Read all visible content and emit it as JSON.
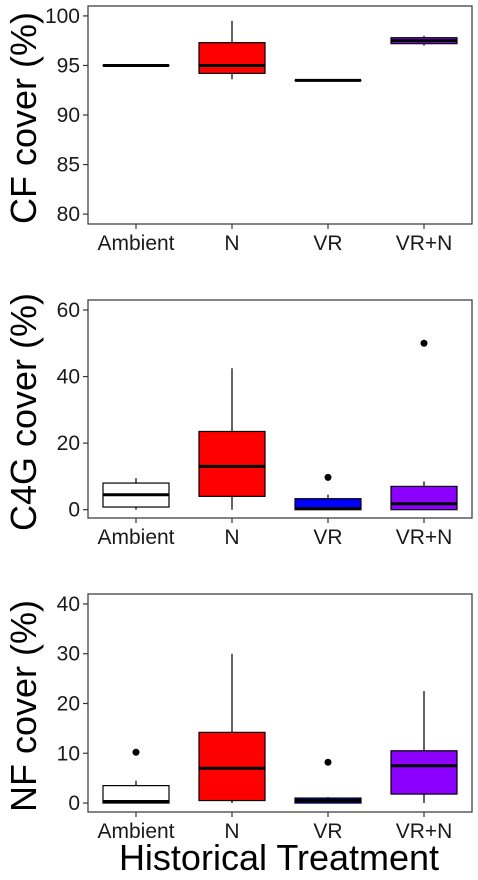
{
  "figure": {
    "x_title": "Historical Treatment"
  },
  "chart_data": [
    {
      "type": "box",
      "ylabel": "CF cover (%)",
      "categories": [
        "Ambient",
        "N",
        "VR",
        "VR+N"
      ],
      "ylim": [
        79,
        101
      ],
      "yticks": [
        80,
        85,
        90,
        95,
        100
      ],
      "grid": false,
      "boxes": [
        {
          "category": "Ambient",
          "fill": "#ffffff",
          "q1": 95,
          "median": 95,
          "q3": 95,
          "whisker_low": 95,
          "whisker_high": 95,
          "outliers": []
        },
        {
          "category": "N",
          "fill": "#ff0000",
          "q1": 94.2,
          "median": 95.0,
          "q3": 97.3,
          "whisker_low": 93.6,
          "whisker_high": 99.5,
          "outliers": []
        },
        {
          "category": "VR",
          "fill": "#0000ff",
          "q1": 93.5,
          "median": 93.5,
          "q3": 93.5,
          "whisker_low": 93.5,
          "whisker_high": 93.5,
          "outliers": []
        },
        {
          "category": "VR+N",
          "fill": "#8b00ff",
          "q1": 97.2,
          "median": 97.5,
          "q3": 97.8,
          "whisker_low": 97.0,
          "whisker_high": 98.0,
          "outliers": []
        }
      ]
    },
    {
      "type": "box",
      "ylabel": "C4G cover (%)",
      "categories": [
        "Ambient",
        "N",
        "VR",
        "VR+N"
      ],
      "ylim": [
        -2.5,
        63
      ],
      "yticks": [
        0,
        20,
        40,
        60
      ],
      "grid": false,
      "boxes": [
        {
          "category": "Ambient",
          "fill": "#ffffff",
          "q1": 0.8,
          "median": 4.5,
          "q3": 8.0,
          "whisker_low": 0.0,
          "whisker_high": 9.5,
          "outliers": []
        },
        {
          "category": "N",
          "fill": "#ff0000",
          "q1": 4.0,
          "median": 13.0,
          "q3": 23.5,
          "whisker_low": 0.0,
          "whisker_high": 42.5,
          "outliers": []
        },
        {
          "category": "VR",
          "fill": "#0000ff",
          "q1": 0.0,
          "median": 0.3,
          "q3": 3.3,
          "whisker_low": 0.0,
          "whisker_high": 4.5,
          "outliers": [
            9.7
          ]
        },
        {
          "category": "VR+N",
          "fill": "#8b00ff",
          "q1": 0.0,
          "median": 1.8,
          "q3": 7.0,
          "whisker_low": 0.0,
          "whisker_high": 8.5,
          "outliers": [
            50
          ]
        }
      ]
    },
    {
      "type": "box",
      "ylabel": "NF cover (%)",
      "categories": [
        "Ambient",
        "N",
        "VR",
        "VR+N"
      ],
      "ylim": [
        -1.8,
        42
      ],
      "yticks": [
        0,
        10,
        20,
        30,
        40
      ],
      "grid": false,
      "boxes": [
        {
          "category": "Ambient",
          "fill": "#ffffff",
          "q1": 0.0,
          "median": 0.3,
          "q3": 3.5,
          "whisker_low": 0.0,
          "whisker_high": 4.5,
          "outliers": [
            10.2
          ]
        },
        {
          "category": "N",
          "fill": "#ff0000",
          "q1": 0.5,
          "median": 7.0,
          "q3": 14.2,
          "whisker_low": 0.0,
          "whisker_high": 30.0,
          "outliers": []
        },
        {
          "category": "VR",
          "fill": "#0000ff",
          "q1": 0.0,
          "median": 0.5,
          "q3": 1.0,
          "whisker_low": 0.0,
          "whisker_high": 1.2,
          "outliers": [
            8.2
          ]
        },
        {
          "category": "VR+N",
          "fill": "#8b00ff",
          "q1": 1.8,
          "median": 7.5,
          "q3": 10.5,
          "whisker_low": 0.0,
          "whisker_high": 22.5,
          "outliers": []
        }
      ]
    }
  ]
}
